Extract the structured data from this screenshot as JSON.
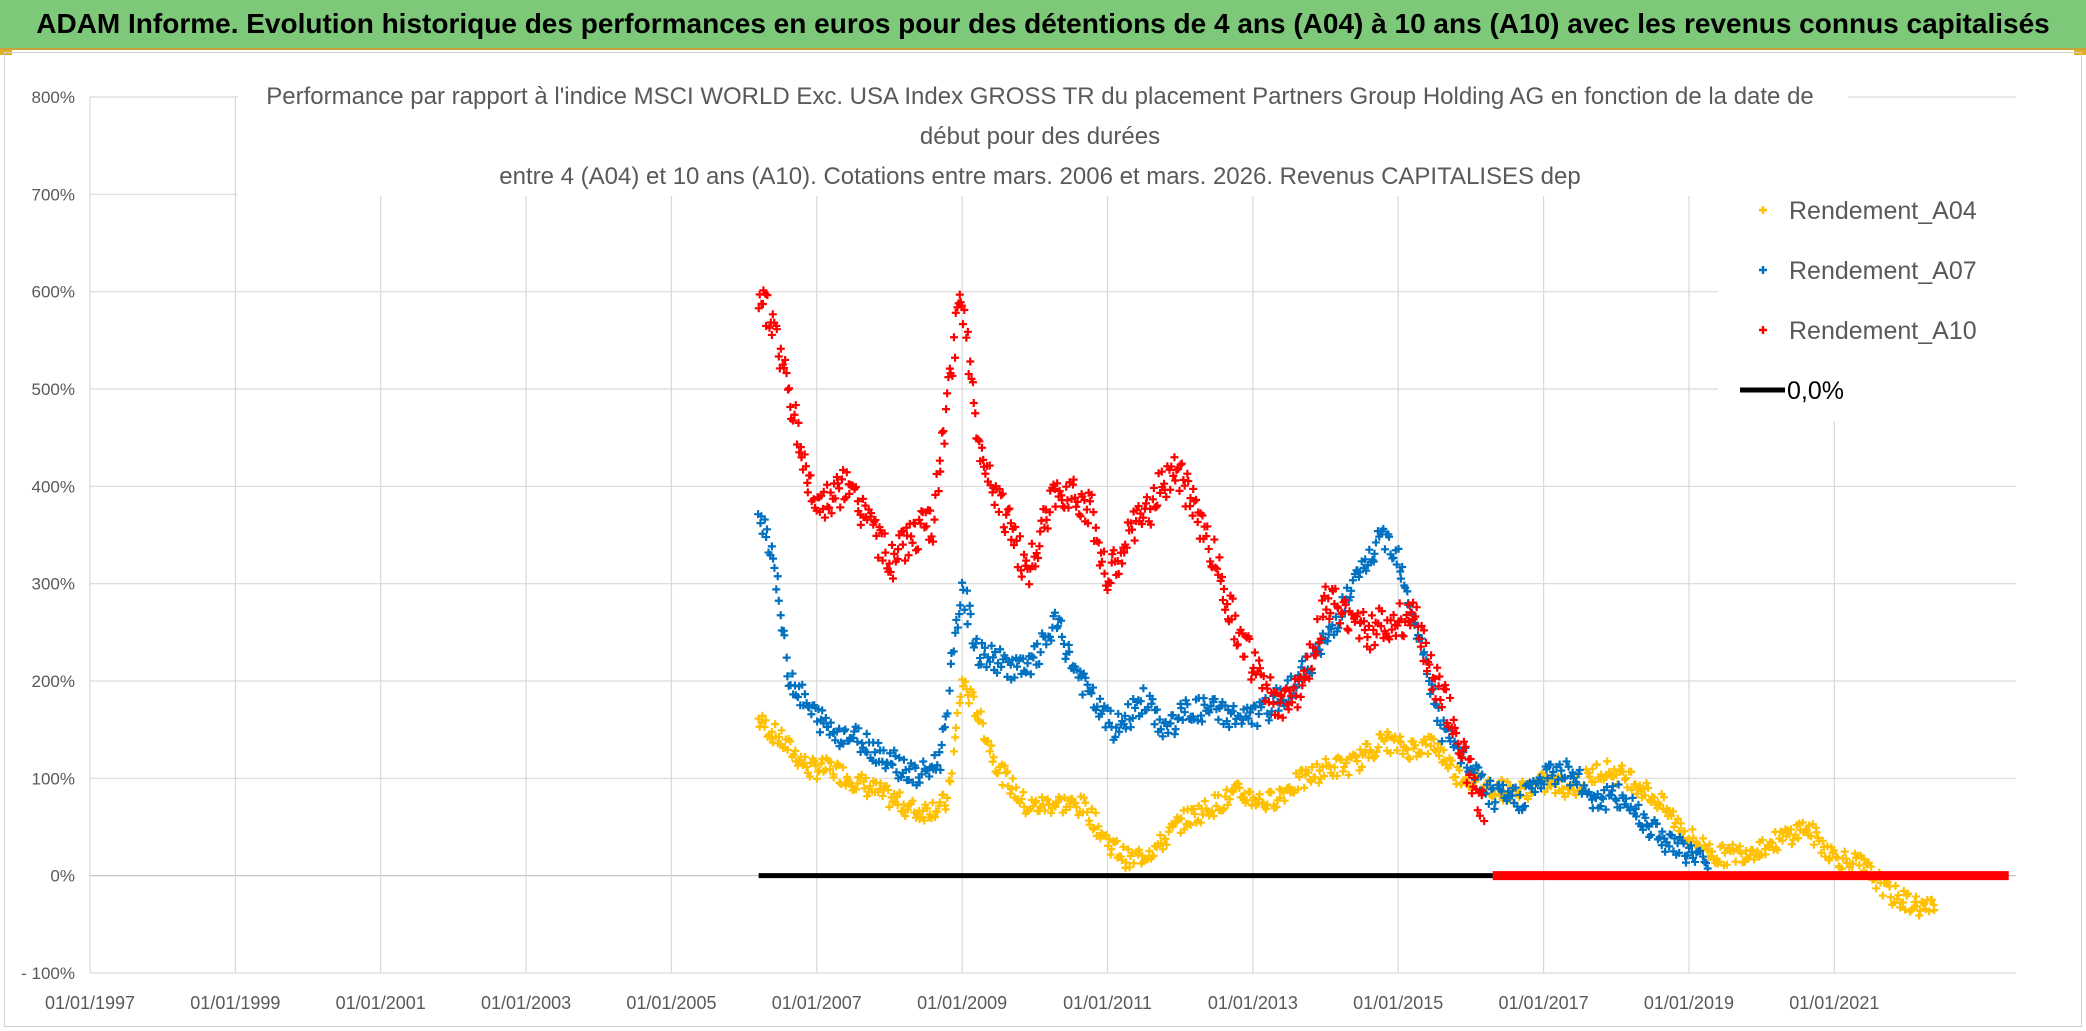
{
  "header": {
    "banner": "ADAM Informe. Evolution historique des performances en euros pour des détentions de 4 ans (A04) à 10 ans (A10) avec les revenus connus capitalisés"
  },
  "colors": {
    "banner_bg": "#7ec87a",
    "a04": "#ffc000",
    "a07": "#0070c0",
    "a10": "#ff0000",
    "zero": "#000000",
    "grid": "#d9d9d9",
    "text": "#595959"
  },
  "chart_data": {
    "type": "scatter",
    "title_lines": [
      "Performance par rapport à l'indice MSCI WORLD Exc. USA Index GROSS TR  du placement Partners Group Holding AG en fonction de la date de",
      "début pour des durées",
      "entre 4 (A04) et 10 ans (A10). Cotations entre mars. 2006 et mars. 2026. Revenus CAPITALISES dep"
    ],
    "x_ticks": [
      "01/01/1997",
      "01/01/1999",
      "01/01/2001",
      "01/01/2003",
      "01/01/2005",
      "01/01/2007",
      "01/01/2009",
      "01/01/2011",
      "01/01/2013",
      "01/01/2015",
      "01/01/2017",
      "01/01/2019",
      "01/01/2021"
    ],
    "x_range": [
      1997.0,
      2023.5
    ],
    "y_ticks": [
      "800%",
      "700%",
      "600%",
      "500%",
      "400%",
      "300%",
      "200%",
      "100%",
      "0%",
      "- 100%"
    ],
    "y_range": [
      -100,
      800
    ],
    "legend": [
      "Rendement_A04",
      "Rendement_A07",
      "Rendement_A10",
      "0,0%"
    ],
    "series": [
      {
        "name": "Rendement_A04",
        "x": [
          2006.2,
          2006.5,
          2006.9,
          2007.2,
          2007.6,
          2008.0,
          2008.4,
          2008.8,
          2009.0,
          2009.2,
          2009.5,
          2009.9,
          2010.3,
          2010.7,
          2011.0,
          2011.3,
          2011.7,
          2012.0,
          2012.4,
          2012.8,
          2013.2,
          2013.6,
          2014.0,
          2014.4,
          2014.8,
          2015.1,
          2015.5,
          2015.8,
          2016.1,
          2016.6,
          2017.0,
          2017.4,
          2017.8,
          2018.2,
          2018.6,
          2019.0,
          2019.4,
          2019.8,
          2020.2,
          2020.6,
          2021.0,
          2021.4,
          2021.8,
          2022.1,
          2022.4
        ],
        "y": [
          160,
          140,
          110,
          110,
          95,
          80,
          65,
          75,
          200,
          170,
          110,
          70,
          75,
          70,
          35,
          15,
          30,
          55,
          70,
          85,
          75,
          95,
          110,
          115,
          140,
          130,
          135,
          105,
          95,
          85,
          95,
          90,
          110,
          100,
          75,
          40,
          20,
          25,
          35,
          50,
          20,
          10,
          -20,
          -30,
          -35
        ]
      },
      {
        "name": "Rendement_A07",
        "x": [
          2006.2,
          2006.4,
          2006.6,
          2006.9,
          2007.2,
          2007.6,
          2008.0,
          2008.4,
          2008.7,
          2009.0,
          2009.2,
          2009.5,
          2009.9,
          2010.3,
          2010.5,
          2010.8,
          2011.1,
          2011.5,
          2011.8,
          2012.1,
          2012.5,
          2012.9,
          2013.2,
          2013.6,
          2014.0,
          2014.4,
          2014.8,
          2015.0,
          2015.3,
          2015.6,
          2015.9,
          2016.3,
          2016.7,
          2017.0,
          2017.3,
          2017.7,
          2018.1,
          2018.5,
          2018.8,
          2019.1,
          2019.3
        ],
        "y": [
          380,
          330,
          210,
          170,
          150,
          140,
          120,
          100,
          120,
          300,
          230,
          220,
          210,
          260,
          220,
          180,
          150,
          180,
          150,
          170,
          170,
          160,
          170,
          200,
          240,
          300,
          350,
          330,
          240,
          150,
          120,
          80,
          80,
          100,
          110,
          80,
          80,
          50,
          30,
          20,
          0
        ]
      },
      {
        "name": "Rendement_A10",
        "x": [
          2006.2,
          2006.4,
          2006.6,
          2006.9,
          2007.1,
          2007.4,
          2007.7,
          2008.0,
          2008.3,
          2008.6,
          2008.9,
          2009.0,
          2009.2,
          2009.5,
          2009.9,
          2010.2,
          2010.5,
          2010.8,
          2011.0,
          2011.3,
          2011.6,
          2011.9,
          2012.2,
          2012.5,
          2012.8,
          2013.1,
          2013.4,
          2013.7,
          2014.0,
          2014.3,
          2014.6,
          2014.9,
          2015.2,
          2015.5,
          2015.8,
          2016.0,
          2016.2
        ],
        "y": [
          600,
          570,
          500,
          400,
          380,
          400,
          370,
          320,
          350,
          360,
          550,
          600,
          450,
          390,
          310,
          380,
          400,
          370,
          300,
          350,
          380,
          420,
          380,
          320,
          250,
          200,
          170,
          200,
          280,
          270,
          250,
          260,
          270,
          200,
          150,
          100,
          70
        ]
      },
      {
        "name": "Rendement_A10_flat",
        "x": [
          2016.3,
          2023.4
        ],
        "y": [
          0,
          0
        ]
      },
      {
        "name": "0,0%",
        "x": [
          2006.2,
          2016.3
        ],
        "y": [
          0,
          0
        ]
      }
    ]
  }
}
